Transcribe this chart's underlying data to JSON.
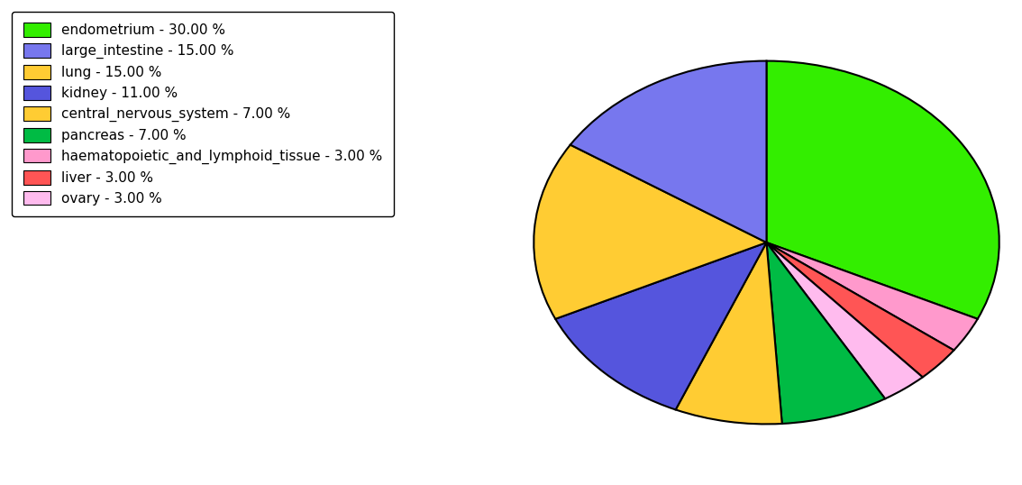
{
  "labels": [
    "endometrium",
    "haematopoietic_and_lymphoid_tissue",
    "liver",
    "ovary",
    "pancreas",
    "central_nervous_system",
    "kidney",
    "lung",
    "large_intestine"
  ],
  "values": [
    30.0,
    3.0,
    3.0,
    3.0,
    7.0,
    7.0,
    11.0,
    15.0,
    15.0
  ],
  "colors": [
    "#33ee00",
    "#ff99cc",
    "#ff5555",
    "#ffbbee",
    "#00bb44",
    "#ffcc33",
    "#5555dd",
    "#ffcc33",
    "#7777ee"
  ],
  "legend_labels": [
    "endometrium - 30.00 %",
    "large_intestine - 15.00 %",
    "lung - 15.00 %",
    "kidney - 11.00 %",
    "central_nervous_system - 7.00 %",
    "pancreas - 7.00 %",
    "haematopoietic_and_lymphoid_tissue - 3.00 %",
    "liver - 3.00 %",
    "ovary - 3.00 %"
  ],
  "legend_colors": [
    "#33ee00",
    "#7777ee",
    "#ffcc33",
    "#5555dd",
    "#ffcc33",
    "#00bb44",
    "#ff99cc",
    "#ff5555",
    "#ffbbee"
  ],
  "figsize": [
    11.34,
    5.38
  ],
  "dpi": 100,
  "legend_fontsize": 11,
  "startangle": 90,
  "background_color": "#ffffff"
}
